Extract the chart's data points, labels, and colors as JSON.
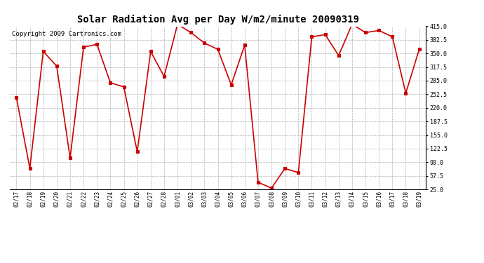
{
  "title": "Solar Radiation Avg per Day W/m2/minute 20090319",
  "copyright_text": "Copyright 2009 Cartronics.com",
  "dates": [
    "02/17",
    "02/18",
    "02/19",
    "02/20",
    "02/21",
    "02/22",
    "02/23",
    "02/24",
    "02/25",
    "02/26",
    "02/27",
    "02/28",
    "03/01",
    "03/02",
    "03/03",
    "03/04",
    "03/05",
    "03/06",
    "03/07",
    "03/08",
    "03/09",
    "03/10",
    "03/11",
    "03/12",
    "03/13",
    "03/14",
    "03/15",
    "03/16",
    "03/17",
    "03/18",
    "03/19"
  ],
  "values": [
    245,
    75,
    355,
    320,
    100,
    365,
    372,
    280,
    270,
    115,
    355,
    295,
    420,
    400,
    375,
    360,
    275,
    370,
    42,
    28,
    75,
    65,
    390,
    395,
    345,
    420,
    400,
    405,
    390,
    255,
    360
  ],
  "line_color": "#cc0000",
  "marker": "s",
  "marker_size": 2.5,
  "marker_color": "#cc0000",
  "bg_color": "#ffffff",
  "grid_color": "#b0b0b0",
  "yticks": [
    25.0,
    57.5,
    90.0,
    122.5,
    155.0,
    187.5,
    220.0,
    252.5,
    285.0,
    317.5,
    350.0,
    382.5,
    415.0
  ],
  "ylim": [
    25.0,
    415.0
  ],
  "title_fontsize": 10,
  "copyright_fontsize": 6.5
}
